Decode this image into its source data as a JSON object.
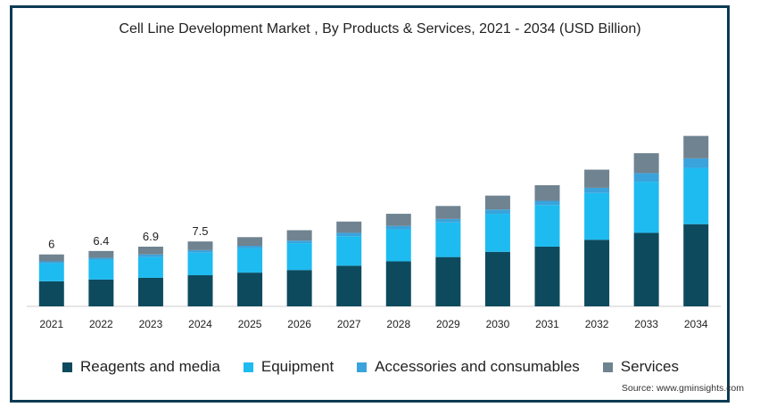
{
  "chart_data": {
    "type": "bar",
    "stacked": true,
    "title": "Cell Line Development Market , By Products & Services, 2021 - 2034 (USD Billion)",
    "categories": [
      "2021",
      "2022",
      "2023",
      "2024",
      "2025",
      "2026",
      "2027",
      "2028",
      "2029",
      "2030",
      "2031",
      "2032",
      "2033",
      "2034"
    ],
    "totals_labels": [
      "6",
      "6.4",
      "6.9",
      "7.5"
    ],
    "series": [
      {
        "name": "Reagents and media",
        "color": "#0d4a5e",
        "values": [
          2.9,
          3.1,
          3.3,
          3.6,
          3.9,
          4.2,
          4.7,
          5.2,
          5.7,
          6.3,
          6.9,
          7.7,
          8.5,
          9.5
        ]
      },
      {
        "name": "Equipment",
        "color": "#1ebbf0",
        "values": [
          2.1,
          2.3,
          2.4,
          2.6,
          2.8,
          3.1,
          3.4,
          3.7,
          4.0,
          4.4,
          4.8,
          5.4,
          5.9,
          6.5
        ]
      },
      {
        "name": "Accessories and consumables",
        "color": "#3aa3dc",
        "values": [
          0.2,
          0.2,
          0.3,
          0.3,
          0.3,
          0.3,
          0.4,
          0.4,
          0.4,
          0.5,
          0.5,
          0.6,
          1.0,
          1.1
        ]
      },
      {
        "name": "Services",
        "color": "#6f8390",
        "values": [
          0.8,
          0.8,
          0.9,
          1.0,
          1.0,
          1.2,
          1.3,
          1.4,
          1.5,
          1.6,
          1.8,
          2.1,
          2.3,
          2.6
        ]
      }
    ],
    "ylim": [
      0,
      21
    ],
    "xlabel": "",
    "ylabel": "",
    "grid": false,
    "legend_position": "bottom"
  },
  "source": "Source: www.gminsights.com"
}
